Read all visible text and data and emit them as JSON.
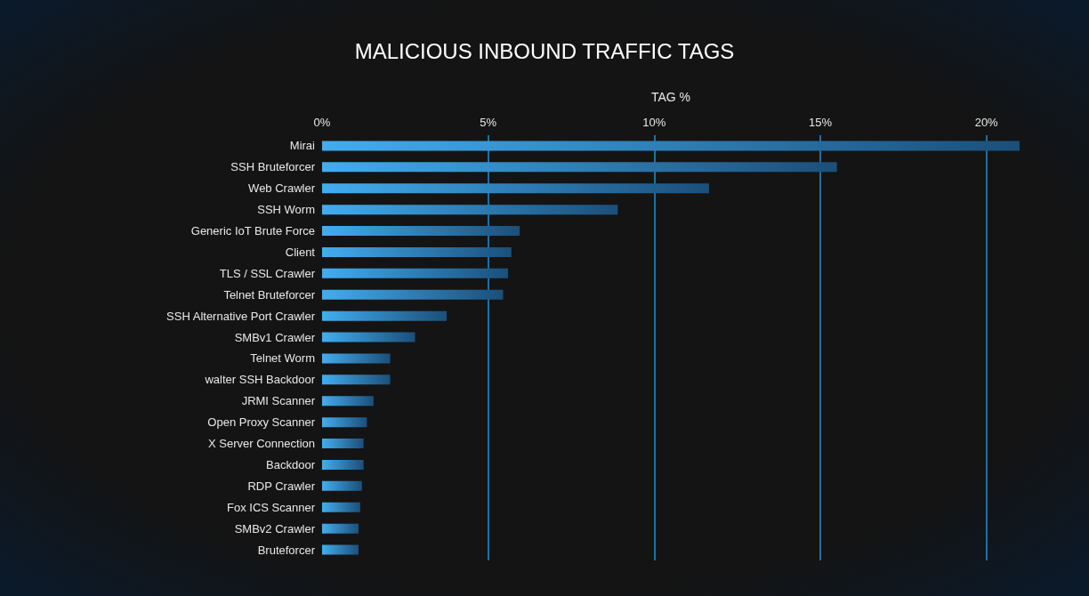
{
  "chart_data": {
    "type": "bar",
    "orientation": "horizontal",
    "title": "MALICIOUS INBOUND TRAFFIC TAGS",
    "xlabel": "TAG %",
    "categories": [
      "Mirai",
      "SSH Bruteforcer",
      "Web Crawler",
      "SSH Worm",
      "Generic IoT Brute Force",
      "Client",
      "TLS / SSL Crawler",
      "Telnet Bruteforcer",
      "SSH Alternative Port Crawler",
      "SMBv1 Crawler",
      "Telnet Worm",
      "walter SSH Backdoor",
      "JRMI Scanner",
      "Open Proxy Scanner",
      "X Server Connection",
      "Backdoor",
      "RDP Crawler",
      "Fox ICS Scanner",
      "SMBv2 Crawler",
      "Bruteforcer"
    ],
    "values": [
      21.0,
      15.5,
      11.65,
      8.9,
      5.95,
      5.7,
      5.6,
      5.45,
      3.75,
      2.8,
      2.05,
      2.05,
      1.55,
      1.35,
      1.25,
      1.25,
      1.2,
      1.15,
      1.1,
      1.1
    ],
    "color": "#42adf0",
    "xlim": [
      0,
      21
    ],
    "xticks": [
      {
        "value": 0,
        "label": "0%"
      },
      {
        "value": 5,
        "label": "5%"
      },
      {
        "value": 10,
        "label": "10%"
      },
      {
        "value": 15,
        "label": "15%"
      },
      {
        "value": 20,
        "label": "20%"
      }
    ],
    "grid": "x"
  }
}
